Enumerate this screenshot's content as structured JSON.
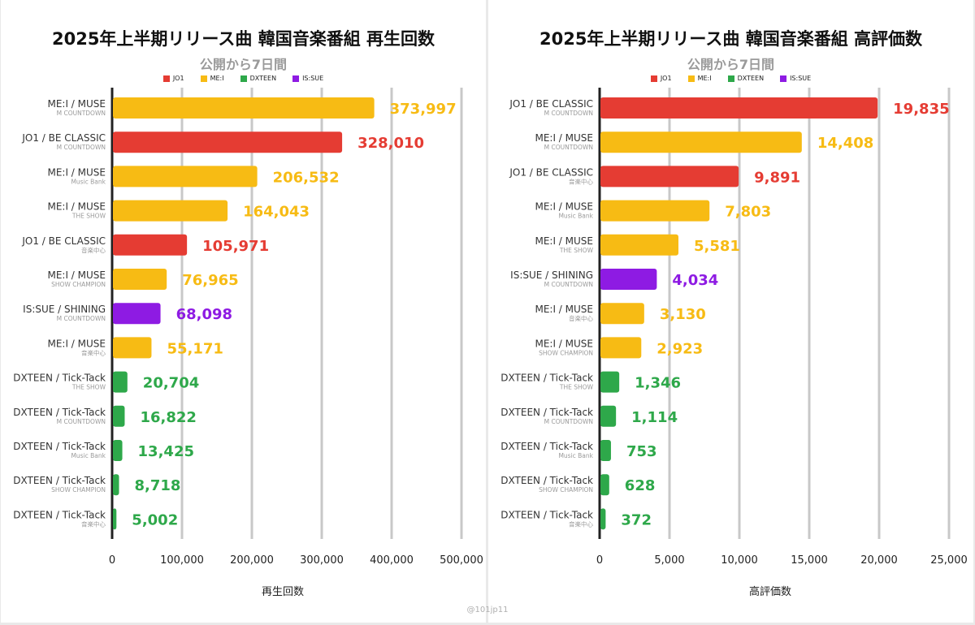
{
  "colors": {
    "JO1": "#e53c33",
    "ME:I": "#f7bb14",
    "DXTEEN": "#2ea84a",
    "IS:SUE": "#8e1be3"
  },
  "legend": [
    "JO1",
    "ME:I",
    "DXTEEN",
    "IS:SUE"
  ],
  "watermark": "@101jp11",
  "chart_data": [
    {
      "type": "bar",
      "orientation": "horizontal",
      "title": "2025年上半期リリース曲 韓国音楽番組 再生回数",
      "subtitle": "公開から7日間",
      "xlabel": "再生回数",
      "xlim": [
        0,
        500000
      ],
      "xticks": [
        "0",
        "100,000",
        "200,000",
        "300,000",
        "400,000",
        "500,000"
      ],
      "legend_position": "top",
      "bars": [
        {
          "label": "ME:I / MUSE",
          "sub": "M COUNTDOWN",
          "artist": "ME:I",
          "value": 373997,
          "value_label": "373,997"
        },
        {
          "label": "JO1 / BE CLASSIC",
          "sub": "M COUNTDOWN",
          "artist": "JO1",
          "value": 328010,
          "value_label": "328,010"
        },
        {
          "label": "ME:I / MUSE",
          "sub": "Music Bank",
          "artist": "ME:I",
          "value": 206532,
          "value_label": "206,532"
        },
        {
          "label": "ME:I / MUSE",
          "sub": "THE SHOW",
          "artist": "ME:I",
          "value": 164043,
          "value_label": "164,043"
        },
        {
          "label": "JO1 / BE CLASSIC",
          "sub": "音楽中心",
          "artist": "JO1",
          "value": 105971,
          "value_label": "105,971"
        },
        {
          "label": "ME:I / MUSE",
          "sub": "SHOW CHAMPION",
          "artist": "ME:I",
          "value": 76965,
          "value_label": "76,965"
        },
        {
          "label": "IS:SUE / SHINING",
          "sub": "M COUNTDOWN",
          "artist": "IS:SUE",
          "value": 68098,
          "value_label": "68,098"
        },
        {
          "label": "ME:I / MUSE",
          "sub": "音楽中心",
          "artist": "ME:I",
          "value": 55171,
          "value_label": "55,171"
        },
        {
          "label": "DXTEEN / Tick-Tack",
          "sub": "THE SHOW",
          "artist": "DXTEEN",
          "value": 20704,
          "value_label": "20,704"
        },
        {
          "label": "DXTEEN / Tick-Tack",
          "sub": "M COUNTDOWN",
          "artist": "DXTEEN",
          "value": 16822,
          "value_label": "16,822"
        },
        {
          "label": "DXTEEN / Tick-Tack",
          "sub": "Music Bank",
          "artist": "DXTEEN",
          "value": 13425,
          "value_label": "13,425"
        },
        {
          "label": "DXTEEN / Tick-Tack",
          "sub": "SHOW CHAMPION",
          "artist": "DXTEEN",
          "value": 8718,
          "value_label": "8,718"
        },
        {
          "label": "DXTEEN / Tick-Tack",
          "sub": "音楽中心",
          "artist": "DXTEEN",
          "value": 5002,
          "value_label": "5,002"
        }
      ]
    },
    {
      "type": "bar",
      "orientation": "horizontal",
      "title": "2025年上半期リリース曲 韓国音楽番組 高評価数",
      "subtitle": "公開から7日間",
      "xlabel": "高評価数",
      "xlim": [
        0,
        25000
      ],
      "xticks": [
        "0",
        "5,000",
        "10,000",
        "15,000",
        "20,000",
        "25,000"
      ],
      "legend_position": "top",
      "bars": [
        {
          "label": "JO1 / BE CLASSIC",
          "sub": "M COUNTDOWN",
          "artist": "JO1",
          "value": 19835,
          "value_label": "19,835"
        },
        {
          "label": "ME:I / MUSE",
          "sub": "M COUNTDOWN",
          "artist": "ME:I",
          "value": 14408,
          "value_label": "14,408"
        },
        {
          "label": "JO1 / BE CLASSIC",
          "sub": "音楽中心",
          "artist": "JO1",
          "value": 9891,
          "value_label": "9,891"
        },
        {
          "label": "ME:I / MUSE",
          "sub": "Music Bank",
          "artist": "ME:I",
          "value": 7803,
          "value_label": "7,803"
        },
        {
          "label": "ME:I / MUSE",
          "sub": "THE SHOW",
          "artist": "ME:I",
          "value": 5581,
          "value_label": "5,581"
        },
        {
          "label": "IS:SUE / SHINING",
          "sub": "M COUNTDOWN",
          "artist": "IS:SUE",
          "value": 4034,
          "value_label": "4,034"
        },
        {
          "label": "ME:I / MUSE",
          "sub": "音楽中心",
          "artist": "ME:I",
          "value": 3130,
          "value_label": "3,130"
        },
        {
          "label": "ME:I / MUSE",
          "sub": "SHOW CHAMPION",
          "artist": "ME:I",
          "value": 2923,
          "value_label": "2,923"
        },
        {
          "label": "DXTEEN / Tick-Tack",
          "sub": "THE SHOW",
          "artist": "DXTEEN",
          "value": 1346,
          "value_label": "1,346"
        },
        {
          "label": "DXTEEN / Tick-Tack",
          "sub": "M COUNTDOWN",
          "artist": "DXTEEN",
          "value": 1114,
          "value_label": "1,114"
        },
        {
          "label": "DXTEEN / Tick-Tack",
          "sub": "Music Bank",
          "artist": "DXTEEN",
          "value": 753,
          "value_label": "753"
        },
        {
          "label": "DXTEEN / Tick-Tack",
          "sub": "SHOW CHAMPION",
          "artist": "DXTEEN",
          "value": 628,
          "value_label": "628"
        },
        {
          "label": "DXTEEN / Tick-Tack",
          "sub": "音楽中心",
          "artist": "DXTEEN",
          "value": 372,
          "value_label": "372"
        }
      ]
    }
  ]
}
